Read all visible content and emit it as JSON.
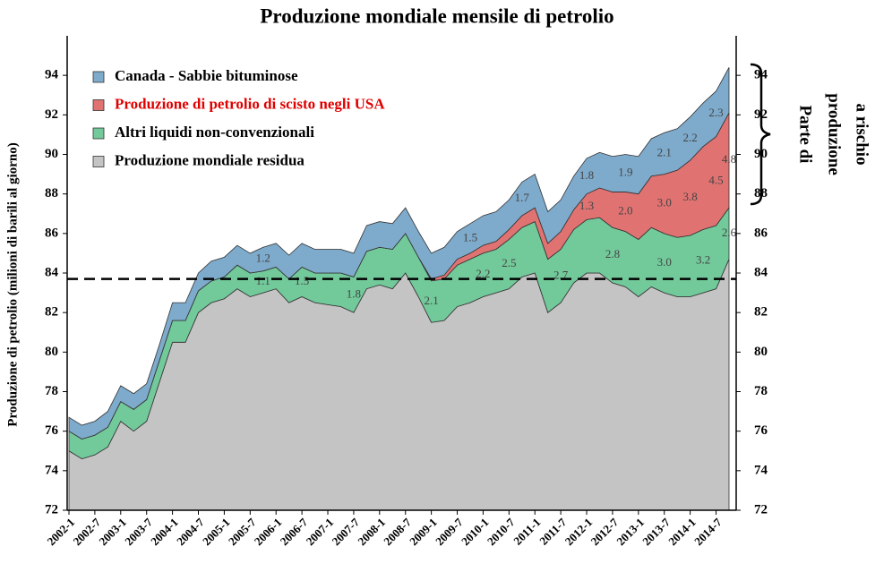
{
  "chart_data": {
    "type": "stacked_area",
    "title": "Produzione mondiale mensile di petrolio",
    "ylabel": "Produzione di petrolio (milioni di barili al giorno)",
    "annotation": [
      "Parte di",
      "produzione",
      "a rischio"
    ],
    "reference_line": 83.7,
    "categories": [
      "2002-1",
      null,
      "2002-7",
      null,
      "2003-1",
      null,
      "2003-7",
      null,
      "2004-1",
      null,
      "2004-7",
      null,
      "2005-1",
      null,
      "2005-7",
      null,
      "2006-1",
      null,
      "2006-7",
      null,
      "2007-1",
      null,
      "2007-7",
      null,
      "2008-1",
      null,
      "2008-7",
      null,
      "2009-1",
      null,
      "2009-7",
      null,
      "2010-1",
      null,
      "2010-7",
      null,
      "2011-1",
      null,
      "2011-7",
      null,
      "2012-1",
      null,
      "2012-7",
      null,
      "2013-1",
      null,
      "2013-7",
      null,
      "2014-1",
      null,
      "2014-7",
      null
    ],
    "series": [
      {
        "name": "Produzione mondiale residua",
        "color": "#c4c4c4",
        "values": [
          75.0,
          74.6,
          74.8,
          75.2,
          76.5,
          76.0,
          76.5,
          78.5,
          80.5,
          80.5,
          82.0,
          82.5,
          82.7,
          83.2,
          82.8,
          83.0,
          83.2,
          82.5,
          82.8,
          82.5,
          82.4,
          82.3,
          82.0,
          83.2,
          83.4,
          83.2,
          84.0,
          82.8,
          81.5,
          81.6,
          82.3,
          82.5,
          82.8,
          83.0,
          83.2,
          83.8,
          84.0,
          82.0,
          82.5,
          83.5,
          84.0,
          84.0,
          83.5,
          83.3,
          82.8,
          83.3,
          83.0,
          82.8,
          82.8,
          83.0,
          83.2,
          84.7
        ]
      },
      {
        "name": "Altri liquidi non-convenzionali",
        "color": "#72c99a",
        "values": [
          1.0,
          1.0,
          1.0,
          1.0,
          1.0,
          1.1,
          1.1,
          1.1,
          1.1,
          1.1,
          1.1,
          1.1,
          1.1,
          1.2,
          1.2,
          1.1,
          1.1,
          1.2,
          1.5,
          1.5,
          1.6,
          1.7,
          1.8,
          1.9,
          1.9,
          2.0,
          2.0,
          2.0,
          2.1,
          2.1,
          2.1,
          2.2,
          2.2,
          2.2,
          2.5,
          2.5,
          2.6,
          2.7,
          2.7,
          2.7,
          2.7,
          2.8,
          2.8,
          2.8,
          2.9,
          3.0,
          3.0,
          3.0,
          3.1,
          3.2,
          3.2,
          2.6
        ],
        "value_labels": [
          null,
          null,
          null,
          null,
          null,
          null,
          null,
          null,
          null,
          null,
          null,
          null,
          null,
          null,
          null,
          "1.1",
          null,
          null,
          "1.5",
          null,
          null,
          null,
          "1.8",
          null,
          null,
          null,
          null,
          null,
          "2.1",
          null,
          null,
          null,
          "2.2",
          null,
          "2.5",
          null,
          null,
          null,
          "2.7",
          null,
          null,
          null,
          "2.8",
          null,
          null,
          null,
          "3.0",
          null,
          null,
          "3.2",
          null,
          "2.6"
        ]
      },
      {
        "name": "Produzione di petrolio di scisto negli USA",
        "color": "#e07272",
        "name_color": "#e00000",
        "values": [
          0,
          0,
          0,
          0,
          0,
          0,
          0,
          0,
          0,
          0,
          0,
          0,
          0,
          0,
          0,
          0,
          0,
          0,
          0,
          0,
          0,
          0,
          0,
          0,
          0,
          0,
          0,
          0,
          0.1,
          0.2,
          0.3,
          0.3,
          0.4,
          0.4,
          0.5,
          0.6,
          0.7,
          0.8,
          0.9,
          1.0,
          1.3,
          1.5,
          1.8,
          2.0,
          2.3,
          2.6,
          3.0,
          3.4,
          3.8,
          4.2,
          4.5,
          4.8
        ],
        "value_labels": [
          null,
          null,
          null,
          null,
          null,
          null,
          null,
          null,
          null,
          null,
          null,
          null,
          null,
          null,
          null,
          null,
          null,
          null,
          null,
          null,
          null,
          null,
          null,
          null,
          null,
          null,
          null,
          null,
          null,
          null,
          null,
          null,
          null,
          null,
          null,
          null,
          null,
          null,
          null,
          null,
          "1.3",
          null,
          null,
          "2.0",
          null,
          null,
          "3.0",
          null,
          "3.8",
          null,
          "4.5",
          "4.8"
        ]
      },
      {
        "name": "Canada - Sabbie bituminose",
        "color": "#7eaacb",
        "values": [
          0.7,
          0.7,
          0.7,
          0.8,
          0.8,
          0.8,
          0.8,
          0.8,
          0.9,
          0.9,
          0.9,
          1.0,
          1.0,
          1.0,
          1.0,
          1.2,
          1.2,
          1.2,
          1.2,
          1.2,
          1.2,
          1.2,
          1.2,
          1.3,
          1.3,
          1.3,
          1.3,
          1.3,
          1.3,
          1.4,
          1.4,
          1.5,
          1.5,
          1.5,
          1.5,
          1.7,
          1.7,
          1.6,
          1.6,
          1.7,
          1.8,
          1.8,
          1.8,
          1.9,
          1.9,
          1.9,
          2.1,
          2.1,
          2.2,
          2.2,
          2.3,
          2.3
        ],
        "value_labels": [
          null,
          null,
          null,
          null,
          null,
          null,
          null,
          null,
          null,
          null,
          null,
          null,
          null,
          null,
          null,
          "1.2",
          null,
          null,
          null,
          null,
          null,
          null,
          null,
          null,
          null,
          null,
          null,
          null,
          null,
          null,
          null,
          "1.5",
          null,
          null,
          null,
          "1.7",
          null,
          null,
          null,
          null,
          "1.8",
          null,
          null,
          "1.9",
          null,
          null,
          "2.1",
          null,
          "2.2",
          null,
          "2.3",
          null
        ]
      }
    ],
    "ylim": [
      72,
      96
    ],
    "yticks": [
      72,
      74,
      76,
      78,
      80,
      82,
      84,
      86,
      88,
      90,
      92,
      94
    ],
    "y2lim": [
      72,
      96
    ],
    "y2ticks": [
      72,
      74,
      76,
      78,
      80,
      82,
      84,
      86,
      88,
      90,
      92,
      94
    ],
    "legend": "upper left"
  }
}
